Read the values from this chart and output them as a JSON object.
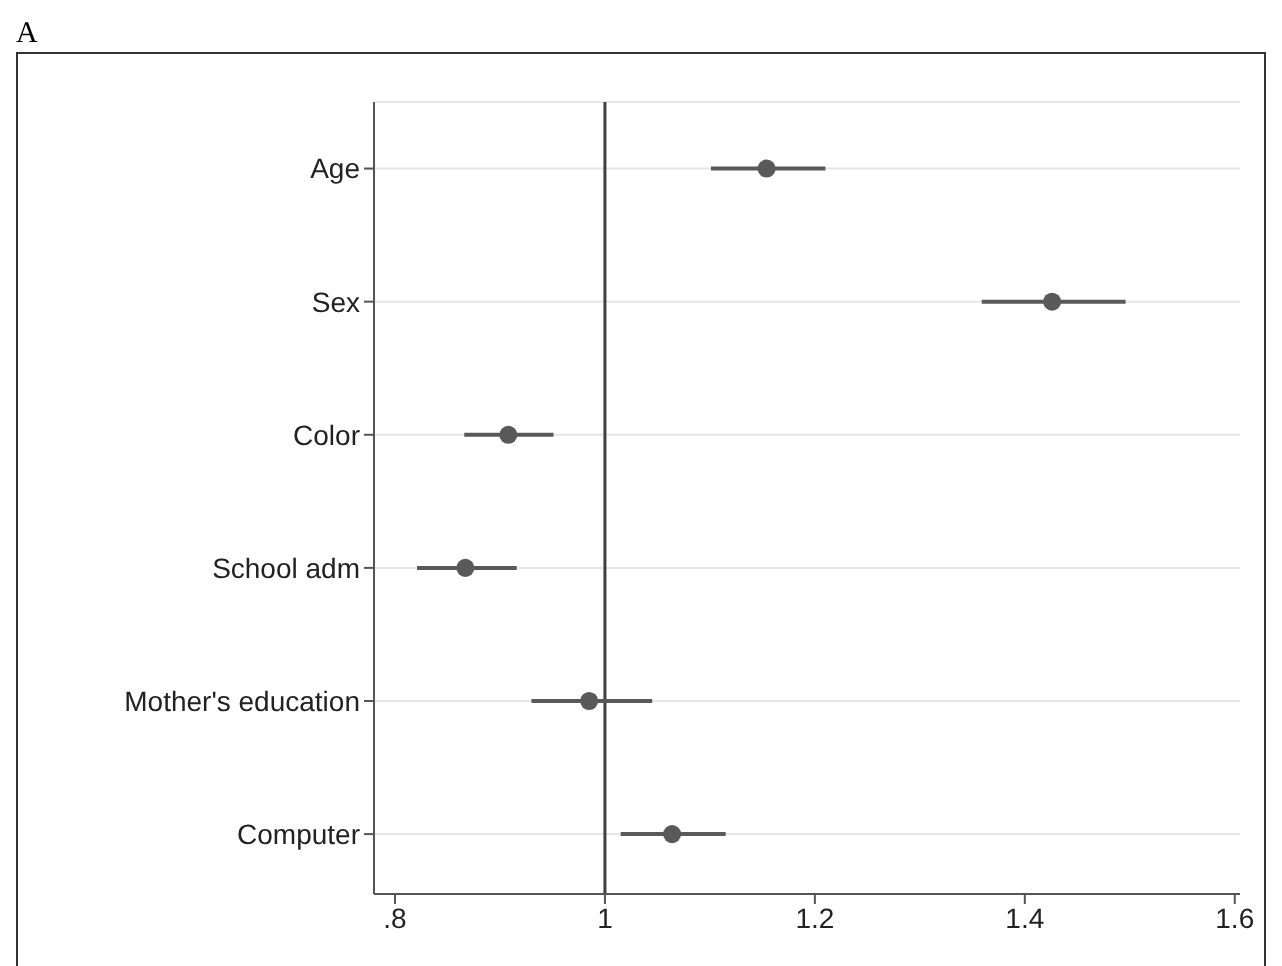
{
  "chart_data": {
    "type": "scatter",
    "orientation": "horizontal",
    "title": "A",
    "categories": [
      "Age",
      "Sex",
      "Color",
      "School adm",
      "Mother's education",
      "Computer"
    ],
    "values": [
      1.154,
      1.426,
      0.908,
      0.867,
      0.985,
      1.064
    ],
    "errors": [
      [
        1.101,
        1.21
      ],
      [
        1.359,
        1.496
      ],
      [
        0.866,
        0.951
      ],
      [
        0.821,
        0.916
      ],
      [
        0.93,
        1.045
      ],
      [
        1.015,
        1.115
      ]
    ],
    "color": "#595959",
    "marker": "circle",
    "grid": "y",
    "legend": false,
    "xlim": [
      0.78,
      1.605
    ],
    "xticks": [
      {
        "value": 0.8,
        "label": ".8"
      },
      1,
      1.2,
      1.4,
      1.6
    ],
    "ref_lines": [
      {
        "axis": "x",
        "value": 1,
        "color": "#404040"
      }
    ]
  }
}
